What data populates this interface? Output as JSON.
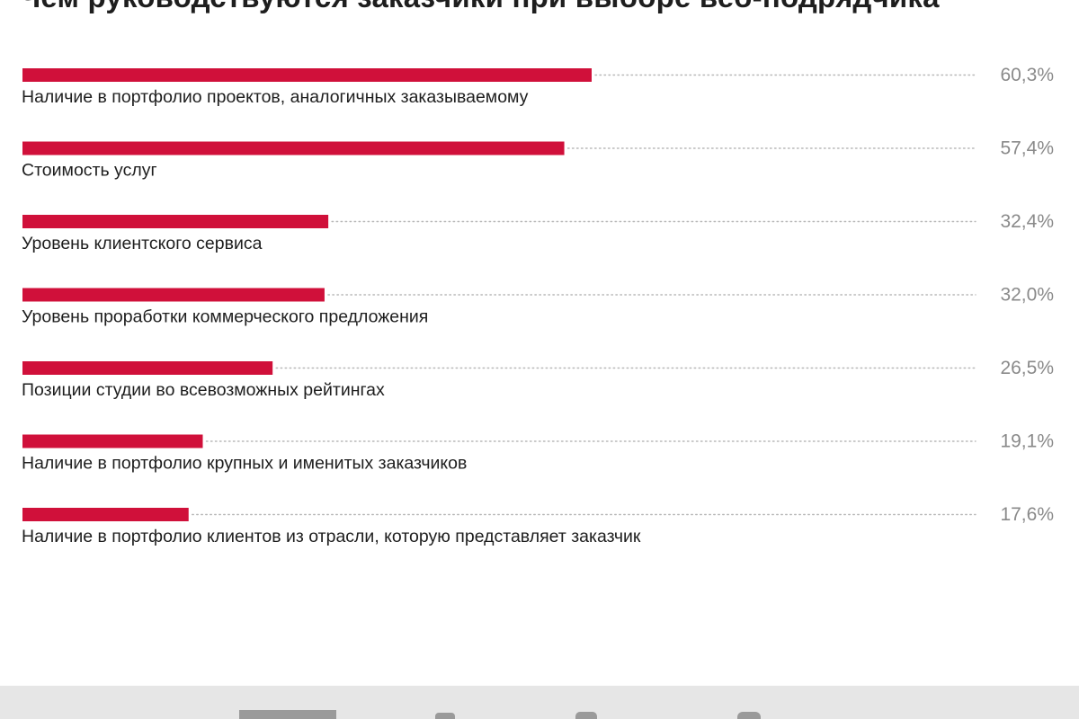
{
  "chart_data": {
    "type": "bar",
    "orientation": "horizontal",
    "title": "Чем руководствуются заказчики при выборе веб-подрядчика",
    "xlim": [
      0,
      100
    ],
    "grid": false,
    "legend": "none",
    "bar_color": "#d0103a",
    "categories": [
      "Наличие в портфолио проектов, аналогичных заказываемому",
      "Стоимость услуг",
      "Уровень клиентского сервиса",
      "Уровень проработки коммерческого предложения",
      "Позиции студии во всевозможных рейтингах",
      "Наличие в портфолио крупных и именитых заказчиков",
      "Наличие в портфолио клиентов из отрасли, которую представляет заказчик"
    ],
    "values": [
      60.3,
      57.4,
      32.4,
      32.0,
      26.5,
      19.1,
      17.6
    ],
    "value_labels": [
      "60,3%",
      "57,4%",
      "32,4%",
      "32,0%",
      "26,5%",
      "19,1%",
      "17,6%"
    ]
  },
  "footer": {
    "logo_icon": "brand-logo-icon"
  }
}
